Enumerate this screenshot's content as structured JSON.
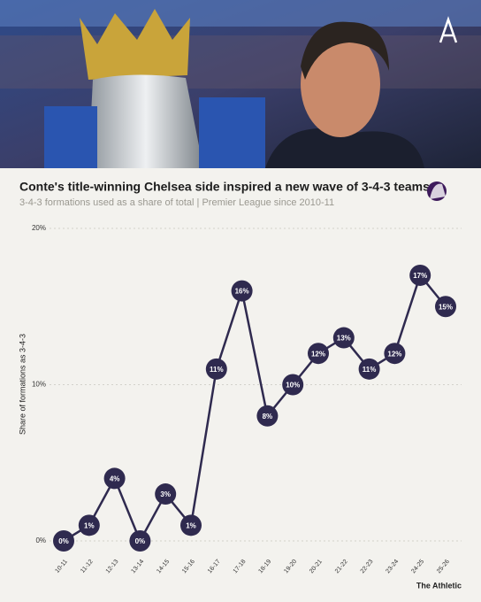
{
  "chart_data": {
    "type": "line",
    "title": "Conte's title-winning Chelsea side inspired a new wave of 3-4-3 teams",
    "subtitle": "3-4-3 formations used as a share of total | Premier League since 2010-11",
    "y_label": "Share of formations as 3-4-3",
    "source": "The Athletic",
    "categories": [
      "10-11",
      "11-12",
      "12-13",
      "13-14",
      "14-15",
      "15-16",
      "16-17",
      "17-18",
      "18-19",
      "19-20",
      "20-21",
      "21-22",
      "22-23",
      "23-24",
      "24-25",
      "25-26"
    ],
    "values": [
      0,
      1,
      4,
      0,
      3,
      1,
      11,
      16,
      8,
      10,
      12,
      13,
      11,
      12,
      17,
      15
    ],
    "value_labels": [
      "0%",
      "1%",
      "4%",
      "0%",
      "3%",
      "1%",
      "11%",
      "16%",
      "8%",
      "10%",
      "12%",
      "13%",
      "11%",
      "12%",
      "17%",
      "15%"
    ],
    "color": "#2f2a4f",
    "ylim": [
      0,
      20
    ],
    "yticks": [
      {
        "value": 0,
        "label": "0%"
      },
      {
        "value": 10,
        "label": "10%"
      },
      {
        "value": 20,
        "label": "20%"
      }
    ],
    "grid": true
  }
}
